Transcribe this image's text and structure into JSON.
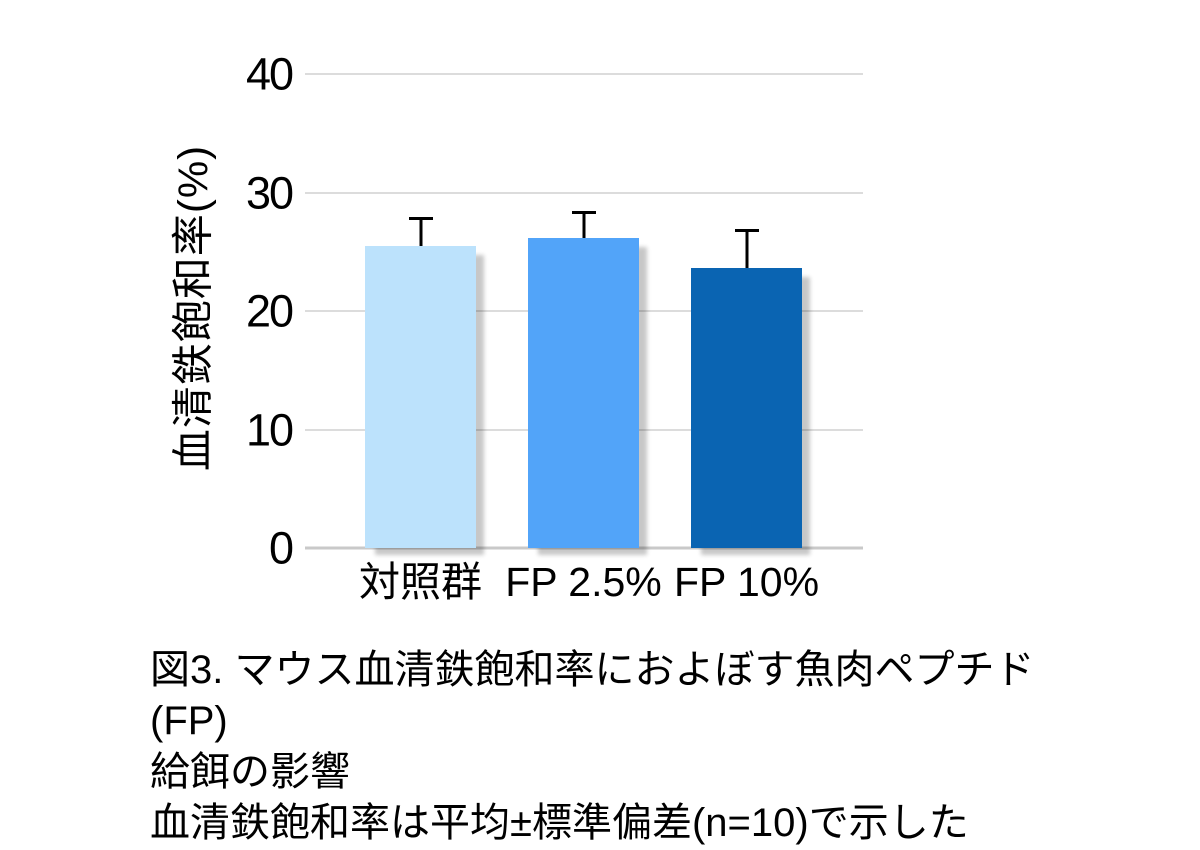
{
  "chart_data": {
    "type": "bar",
    "title": "",
    "categories": [
      "対照群",
      "FP 2.5%",
      "FP 10%"
    ],
    "values": [
      25.5,
      26.2,
      23.6
    ],
    "error_sd_upper": [
      2.4,
      2.2,
      3.3
    ],
    "series_note": "mean ± SD, n=10, upper error bars only",
    "xlabel": "",
    "ylabel": "血清鉄飽和率(%)",
    "ylim": [
      0,
      40
    ],
    "yticks": [
      0,
      10,
      20,
      30,
      40
    ],
    "grid": "horizontal-only, no vertical axis line",
    "legend": "none",
    "bar_colors": [
      "#BCE2FC",
      "#52A4F9",
      "#0A64B2"
    ],
    "gridline_color": "#DCDCDC",
    "axis_line_color": "#C9C9C9",
    "error_bar_color": "#000000"
  },
  "caption": {
    "line1": "図3. マウス血清鉄飽和率におよぼす魚肉ペプチド(FP)",
    "line2": "給餌の影響",
    "line3": "血清鉄飽和率は平均±標準偏差(n=10)で示した"
  }
}
